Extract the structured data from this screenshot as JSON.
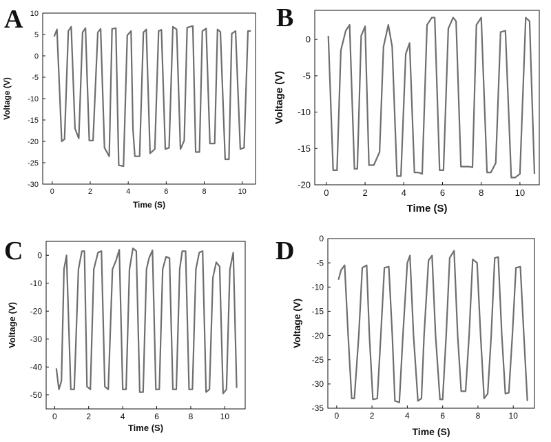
{
  "chart_data": [
    {
      "panel": "A",
      "type": "line",
      "xlabel": "Time (S)",
      "ylabel": "Voltage (V)",
      "xlim": [
        -0.5,
        10.7
      ],
      "ylim": [
        -30,
        10
      ],
      "xticks": [
        0,
        2,
        4,
        6,
        8,
        10
      ],
      "yticks": [
        10,
        5,
        0,
        -5,
        -10,
        -15,
        -20,
        -25,
        -30
      ],
      "line_color": "#6e6e6e",
      "x": [
        0.1,
        0.25,
        0.5,
        0.65,
        0.85,
        1.0,
        1.2,
        1.4,
        1.6,
        1.75,
        1.95,
        2.15,
        2.4,
        2.55,
        2.75,
        3.0,
        3.15,
        3.35,
        3.5,
        3.75,
        3.95,
        4.15,
        4.25,
        4.35,
        4.6,
        4.8,
        4.95,
        5.15,
        5.4,
        5.6,
        5.75,
        5.95,
        6.15,
        6.35,
        6.55,
        6.75,
        6.95,
        7.1,
        7.4,
        7.55,
        7.75,
        7.9,
        8.1,
        8.3,
        8.55,
        8.7,
        8.85,
        9.1,
        9.3,
        9.45,
        9.65,
        9.9,
        10.1,
        10.3,
        10.45
      ],
      "y": [
        4.5,
        6.2,
        -20,
        -19.5,
        5.8,
        6.8,
        -17,
        -19.3,
        5.5,
        6.5,
        -19.8,
        -19.8,
        5.5,
        6.3,
        -21.5,
        -23.5,
        6.3,
        6.5,
        -25.6,
        -25.8,
        4.8,
        5.8,
        -17,
        -23.5,
        -23.5,
        5.5,
        6.2,
        -22.8,
        -21.8,
        5.8,
        6.1,
        -21.8,
        -21.5,
        6.8,
        6.2,
        -21.8,
        -19.8,
        6.6,
        7.0,
        -22.5,
        -22.5,
        5.8,
        6.4,
        -20.5,
        -20.5,
        6.2,
        5.6,
        -24.2,
        -24.2,
        5.2,
        5.8,
        -21.8,
        -21.5,
        5.8,
        5.8
      ]
    },
    {
      "panel": "B",
      "type": "line",
      "xlabel": "Time (S)",
      "ylabel": "Voltage (V)",
      "xlim": [
        -0.6,
        11
      ],
      "ylim": [
        -20,
        4
      ],
      "xticks": [
        0,
        2,
        4,
        6,
        8,
        10
      ],
      "yticks": [
        0,
        -5,
        -10,
        -15,
        -20
      ],
      "line_color": "#6e6e6e",
      "x": [
        0.1,
        0.35,
        0.55,
        0.75,
        1.0,
        1.2,
        1.45,
        1.6,
        1.8,
        2.0,
        2.2,
        2.45,
        2.75,
        2.95,
        3.2,
        3.4,
        3.65,
        3.85,
        4.1,
        4.3,
        4.55,
        4.75,
        4.95,
        5.2,
        5.45,
        5.6,
        5.85,
        6.05,
        6.3,
        6.55,
        6.7,
        6.95,
        7.35,
        7.55,
        7.75,
        8.0,
        8.3,
        8.5,
        8.75,
        9.0,
        9.25,
        9.55,
        9.75,
        10.0,
        10.3,
        10.5,
        10.75
      ],
      "y": [
        0.5,
        -18,
        -18,
        -1.5,
        1.2,
        2.0,
        -17.8,
        -17.8,
        0.5,
        1.8,
        -17.3,
        -17.3,
        -15.5,
        -1,
        2,
        -1,
        -18.8,
        -18.8,
        -2,
        -0.5,
        -18.3,
        -18.3,
        -18.5,
        2,
        3,
        3,
        -18,
        -18,
        1.5,
        3,
        2.5,
        -17.5,
        -17.5,
        -17.6,
        2,
        3,
        -18.3,
        -18.3,
        -17,
        1,
        1.2,
        -19,
        -19,
        -18.5,
        3,
        2.5,
        -18.5
      ]
    },
    {
      "panel": "C",
      "type": "line",
      "xlabel": "Time (S)",
      "ylabel": "Voltage (V)",
      "xlim": [
        -0.5,
        11.2
      ],
      "ylim": [
        -55,
        5
      ],
      "xticks": [
        0,
        2,
        4,
        6,
        8,
        10
      ],
      "yticks": [
        0,
        -10,
        -20,
        -30,
        -40,
        -50
      ],
      "line_color": "#6e6e6e",
      "x": [
        0.1,
        0.25,
        0.4,
        0.55,
        0.7,
        0.95,
        1.15,
        1.4,
        1.6,
        1.75,
        1.9,
        2.1,
        2.3,
        2.55,
        2.75,
        2.95,
        3.15,
        3.4,
        3.6,
        3.8,
        4.0,
        4.2,
        4.4,
        4.6,
        4.8,
        5.0,
        5.2,
        5.4,
        5.55,
        5.75,
        5.95,
        6.15,
        6.35,
        6.55,
        6.75,
        6.95,
        7.15,
        7.35,
        7.5,
        7.7,
        7.9,
        8.1,
        8.3,
        8.5,
        8.7,
        8.9,
        9.1,
        9.3,
        9.5,
        9.7,
        9.9,
        10.1,
        10.3,
        10.5,
        10.7
      ],
      "y": [
        -40.5,
        -48,
        -45,
        -5,
        0,
        -48,
        -48,
        -5,
        1.5,
        1.5,
        -47,
        -48,
        -5,
        1,
        1.5,
        -47,
        -48,
        -5,
        -2,
        2,
        -48,
        -48,
        -5,
        2.5,
        1.5,
        -49,
        -49,
        -5,
        -1,
        1.8,
        -48,
        -48,
        -5,
        -0.5,
        -1,
        -48,
        -48,
        -5,
        1.5,
        1.5,
        -48,
        -48,
        -5,
        1,
        1.5,
        -49,
        -48,
        -8,
        -2.5,
        -4,
        -49.5,
        -48,
        -5,
        1,
        -47.5
      ]
    },
    {
      "panel": "D",
      "type": "line",
      "xlabel": "Time (S)",
      "ylabel": "Voltage (V)",
      "xlim": [
        -0.5,
        11.2
      ],
      "ylim": [
        -35,
        0
      ],
      "xticks": [
        0,
        2,
        4,
        6,
        8,
        10
      ],
      "yticks": [
        0,
        -5,
        -10,
        -15,
        -20,
        -25,
        -30,
        -35
      ],
      "line_color": "#6e6e6e",
      "x": [
        0.1,
        0.25,
        0.45,
        0.65,
        0.85,
        1.0,
        1.25,
        1.45,
        1.7,
        1.85,
        2.05,
        2.3,
        2.5,
        2.7,
        2.95,
        3.15,
        3.3,
        3.55,
        3.75,
        4.0,
        4.15,
        4.35,
        4.6,
        4.8,
        4.95,
        5.2,
        5.4,
        5.6,
        5.85,
        6.0,
        6.2,
        6.4,
        6.65,
        6.85,
        7.05,
        7.3,
        7.5,
        7.7,
        7.95,
        8.15,
        8.35,
        8.55,
        8.75,
        8.95,
        9.15,
        9.35,
        9.55,
        9.75,
        9.95,
        10.15,
        10.4,
        10.6,
        10.8
      ],
      "y": [
        -8.5,
        -6.5,
        -5.5,
        -20,
        -33,
        -33,
        -20,
        -6,
        -5.5,
        -20,
        -33.2,
        -33,
        -20,
        -6,
        -5.8,
        -20,
        -33.5,
        -33.8,
        -20,
        -5,
        -3.5,
        -20,
        -33.5,
        -33,
        -20,
        -4.5,
        -3.5,
        -20,
        -33.2,
        -33.2,
        -20,
        -4,
        -2.5,
        -20,
        -31.5,
        -31.5,
        -20,
        -4.3,
        -5,
        -20,
        -33,
        -32,
        -20,
        -4,
        -3.8,
        -20,
        -32,
        -31.8,
        -20,
        -6,
        -5.8,
        -20,
        -33.5
      ]
    }
  ]
}
